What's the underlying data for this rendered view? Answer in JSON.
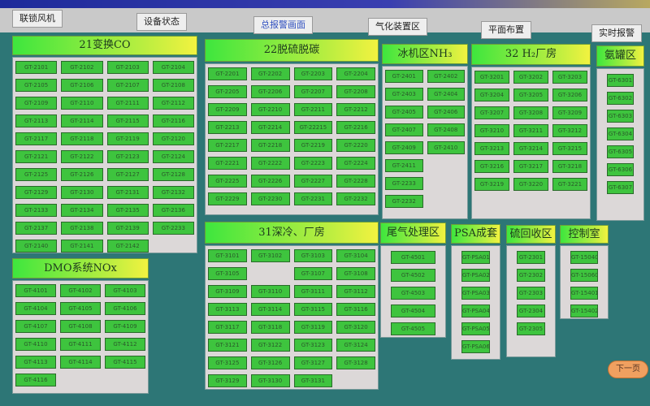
{
  "toolbar": {
    "buttons": [
      {
        "label": "联锁风机",
        "active": false
      },
      {
        "label": "设备状态",
        "active": false
      },
      {
        "label": "总报警画面",
        "active": true
      },
      {
        "label": "气化装置区",
        "active": false
      },
      {
        "label": "平面布置",
        "active": false
      },
      {
        "label": "实时报警",
        "active": false
      }
    ]
  },
  "colors": {
    "background": "#2d7676",
    "tag_normal": "#3ec43e",
    "header_from": "#3ee63e",
    "header_to": "#f2f240"
  },
  "panels": [
    {
      "title": "21变换CO",
      "cols": 4,
      "tags": [
        "GT-2101",
        "GT-2102",
        "GT-2103",
        "GT-2104",
        "GT-2105",
        "GT-2106",
        "GT-2107",
        "GT-2108",
        "GT-2109",
        "GT-2110",
        "GT-2111",
        "GT-2112",
        "GT-2113",
        "GT-2114",
        "GT-2115",
        "GT-2116",
        "GT-2117",
        "GT-2118",
        "GT-2119",
        "GT-2120",
        "GT-2121",
        "GT-2122",
        "GT-2123",
        "GT-2124",
        "GT-2125",
        "GT-2126",
        "GT-2127",
        "GT-2128",
        "GT-2129",
        "GT-2130",
        "GT-2131",
        "GT-2132",
        "GT-2133",
        "GT-2134",
        "GT-2135",
        "GT-2136",
        "GT-2137",
        "GT-2138",
        "GT-2139",
        "GT-2233",
        "GT-2140",
        "GT-2141",
        "GT-2142"
      ]
    },
    {
      "title": "DMO系统NOx",
      "cols": 3,
      "tags": [
        "GT-4101",
        "GT-4102",
        "GT-4103",
        "GT-4104",
        "GT-4105",
        "GT-4106",
        "GT-4107",
        "GT-4108",
        "GT-4109",
        "GT-4110",
        "GT-4111",
        "GT-4112",
        "GT-4113",
        "GT-4114",
        "GT-4115",
        "GT-4116"
      ]
    },
    {
      "title": "22脱硫脱碳",
      "cols": 4,
      "tags": [
        "GT-2201",
        "GT-2202",
        "GT-2203",
        "GT-2204",
        "GT-2205",
        "GT-2206",
        "GT-2207",
        "GT-2208",
        "GT-2209",
        "GT-2210",
        "GT-2211",
        "GT-2212",
        "GT-2213",
        "GT-2214",
        "GT-22215",
        "GT-2216",
        "GT-2217",
        "GT-2218",
        "GT-2219",
        "GT-2220",
        "GT-2221",
        "GT-2222",
        "GT-2223",
        "GT-2224",
        "GT-2225",
        "GT-2226",
        "GT-2227",
        "GT-2228",
        "GT-2229",
        "GT-2230",
        "GT-2231",
        "GT-2232"
      ]
    },
    {
      "title": "31深冷、厂房",
      "cols": 4,
      "tags": [
        "GT-3101",
        "GT-3102",
        "GT-3103",
        "GT-3104",
        "GT-3105",
        null,
        "GT-3107",
        "GT-3108",
        "GT-3109",
        "GT-3110",
        "GT-3111",
        "GT-3112",
        "GT-3113",
        "GT-3114",
        "GT-3115",
        "GT-3116",
        "GT-3117",
        "GT-3118",
        "GT-3119",
        "GT-3120",
        "GT-3121",
        "GT-3122",
        "GT-3123",
        "GT-3124",
        "GT-3125",
        "GT-3126",
        "GT-3127",
        "GT-3128",
        "GT-3129",
        "GT-3130",
        "GT-3131"
      ]
    },
    {
      "title": "冰机区NH₃",
      "cols": 2,
      "tags": [
        "GT-2401",
        "GT-2402",
        "GT-2403",
        "GT-2404",
        "GT-2405",
        "GT-2406",
        "GT-2407",
        "GT-2408",
        "GT-2409",
        "GT-2410",
        "GT-2411",
        null,
        "GT-2233",
        null,
        "GT-2232"
      ]
    },
    {
      "title": "32 H₂厂房",
      "cols": 3,
      "tags": [
        "GT-3201",
        "GT-3202",
        "GT-3203",
        "GT-3204",
        "GT-3205",
        "GT-3206",
        "GT-3207",
        "GT-3208",
        "GT-3209",
        "GT-3210",
        "GT-3211",
        "GT-3212",
        "GT-3213",
        "GT-3214",
        "GT-3215",
        "GT-3216",
        "GT-3217",
        "GT-3218",
        "GT-3219",
        "GT-3220",
        "GT-3221"
      ]
    },
    {
      "title": "氨罐区",
      "cols": 1,
      "tags": [
        "GT-6301",
        "GT-6302",
        "GT-6303",
        "GT-6304",
        "GT-6305",
        "GT-6306",
        "GT-6307"
      ]
    },
    {
      "title": "尾气处理区",
      "cols": 1,
      "tags": [
        "GT-4501",
        "GT-4502",
        "GT-4503",
        "GT-4504",
        "GT-4505"
      ]
    },
    {
      "title": "PSA成套",
      "cols": 1,
      "tags": [
        "GT-PSA01",
        "GT-PSA02",
        "GT-PSA03",
        "GT-PSA04",
        "GT-PSA05",
        "GT-PSA06"
      ]
    },
    {
      "title": "硫回收区",
      "cols": 1,
      "tags": [
        "GT-2301",
        "GT-2302",
        "GT-2303",
        "GT-2304",
        "GT-2305"
      ]
    },
    {
      "title": "控制室",
      "cols": 1,
      "tags": [
        "GT-150401",
        "GT-150601",
        "GT-15401",
        "GT-15402"
      ]
    }
  ],
  "next_page": {
    "label": "下一页"
  }
}
